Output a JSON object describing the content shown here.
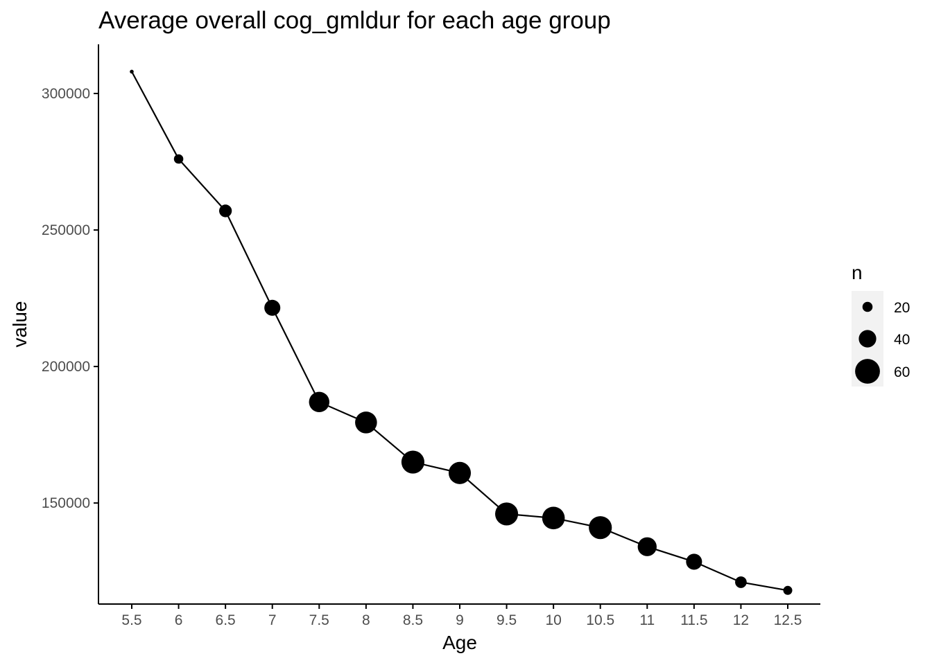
{
  "chart_data": {
    "type": "line",
    "title": "Average overall cog_gmldur for each age group",
    "xlabel": "Age",
    "ylabel": "value",
    "categories": [
      "5.5",
      "6",
      "6.5",
      "7",
      "7.5",
      "8",
      "8.5",
      "9",
      "9.5",
      "10",
      "10.5",
      "11",
      "11.5",
      "12",
      "12.5"
    ],
    "series": [
      {
        "values": [
          308000,
          276000,
          257000,
          221500,
          187000,
          179500,
          165000,
          161000,
          146000,
          144500,
          141000,
          134000,
          128500,
          121000,
          118000
        ],
        "n": [
          3,
          18,
          27,
          36,
          48,
          52,
          55,
          53,
          55,
          54,
          55,
          44,
          36,
          24,
          17
        ]
      }
    ],
    "yticks": [
      150000,
      200000,
      250000,
      300000
    ],
    "ylim": [
      113000,
      318000
    ],
    "grid": false,
    "legend": {
      "title": "n",
      "placement": "right",
      "entries": [
        {
          "label": "20",
          "value": 20
        },
        {
          "label": "40",
          "value": 40
        },
        {
          "label": "60",
          "value": 60
        }
      ]
    },
    "colors": {
      "points": "#000000",
      "line": "#000000",
      "axis": "#000000",
      "tick_text": "#4d4d4d",
      "legend_key_bg": "#f2f2f2"
    }
  }
}
